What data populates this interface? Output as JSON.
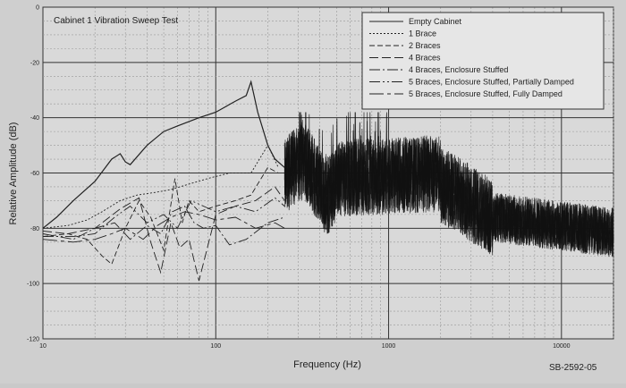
{
  "chart_data": {
    "type": "line",
    "title": "Cabinet 1 Vibration Sweep Test",
    "xlabel": "Frequency (Hz)",
    "ylabel": "Relative Amplitude (dB)",
    "x_scale": "log",
    "xlim": [
      10,
      20000
    ],
    "ylim": [
      -120,
      0
    ],
    "x_ticks": [
      10,
      100,
      1000,
      10000
    ],
    "x_tick_labels": [
      "10",
      "100",
      "1000",
      "10000"
    ],
    "y_ticks": [
      0,
      -20,
      -40,
      -60,
      -80,
      -100,
      -120
    ],
    "y_tick_labels": [
      "0",
      "-20",
      "-40",
      "-60",
      "-80",
      "-100",
      "-120"
    ],
    "grid": true,
    "legend_position": "top-right",
    "figure_id": "SB-2592-05",
    "series": [
      {
        "name": "Empty Cabinet",
        "dash": "solid",
        "x": [
          10,
          12,
          15,
          20,
          25,
          28,
          30,
          32,
          40,
          50,
          60,
          80,
          100,
          130,
          150,
          160,
          175,
          200,
          220,
          250
        ],
        "y": [
          -80,
          -76,
          -70,
          -63,
          -55,
          -53,
          -56,
          -57,
          -50,
          -45,
          -43,
          -40,
          -38,
          -34,
          -32,
          -27,
          -38,
          -50,
          -55,
          -58
        ]
      },
      {
        "name": "1 Brace",
        "dash": "2,2",
        "x": [
          10,
          14,
          18,
          22,
          28,
          35,
          45,
          55,
          70,
          90,
          120,
          160,
          200,
          230
        ],
        "y": [
          -80,
          -79,
          -77,
          -74,
          -70,
          -68,
          -67,
          -66,
          -64,
          -62,
          -60,
          -60,
          -50,
          -58
        ]
      },
      {
        "name": "2 Braces",
        "dash": "6,3",
        "x": [
          10,
          14,
          18,
          22,
          25,
          30,
          36,
          42,
          50,
          58,
          64,
          70,
          80,
          100,
          130,
          160,
          200,
          230
        ],
        "y": [
          -83,
          -82,
          -84,
          -90,
          -93,
          -80,
          -70,
          -76,
          -88,
          -62,
          -78,
          -70,
          -74,
          -72,
          -70,
          -68,
          -58,
          -60
        ]
      },
      {
        "name": "4 Braces",
        "dash": "10,4",
        "x": [
          10,
          14,
          20,
          28,
          36,
          42,
          48,
          55,
          62,
          70,
          80,
          100,
          130,
          170,
          220,
          250
        ],
        "y": [
          -81,
          -82,
          -80,
          -73,
          -69,
          -85,
          -96,
          -78,
          -87,
          -84,
          -99,
          -75,
          -72,
          -70,
          -65,
          -70
        ]
      },
      {
        "name": "4 Braces, Enclosure Stuffed",
        "dash": "12,3,2,3",
        "x": [
          10,
          15,
          20,
          26,
          32,
          40,
          48,
          56,
          66,
          75,
          85,
          100,
          120,
          150,
          200,
          250
        ],
        "y": [
          -82,
          -84,
          -80,
          -78,
          -84,
          -79,
          -82,
          -74,
          -72,
          -78,
          -80,
          -79,
          -86,
          -84,
          -78,
          -76
        ]
      },
      {
        "name": "5 Braces, Enclosure Stuffed, Partially Damped",
        "dash": "12,3,2,3,2,3",
        "x": [
          10,
          15,
          20,
          26,
          32,
          40,
          50,
          60,
          72,
          85,
          100,
          130,
          170,
          220,
          250
        ],
        "y": [
          -83,
          -83,
          -82,
          -76,
          -72,
          -78,
          -75,
          -80,
          -70,
          -72,
          -74,
          -72,
          -74,
          -69,
          -72
        ]
      },
      {
        "name": "5 Braces, Enclosure Stuffed, Fully Damped",
        "dash": "16,4,4,4",
        "x": [
          10,
          15,
          20,
          25,
          30,
          38,
          46,
          55,
          66,
          80,
          100,
          130,
          170,
          220,
          250
        ],
        "y": [
          -84,
          -85,
          -84,
          -82,
          -80,
          -84,
          -79,
          -76,
          -74,
          -75,
          -77,
          -76,
          -80,
          -78,
          -80
        ]
      }
    ],
    "annotations": {
      "noise_region": {
        "x_range": [
          250,
          20000
        ]
      }
    }
  }
}
